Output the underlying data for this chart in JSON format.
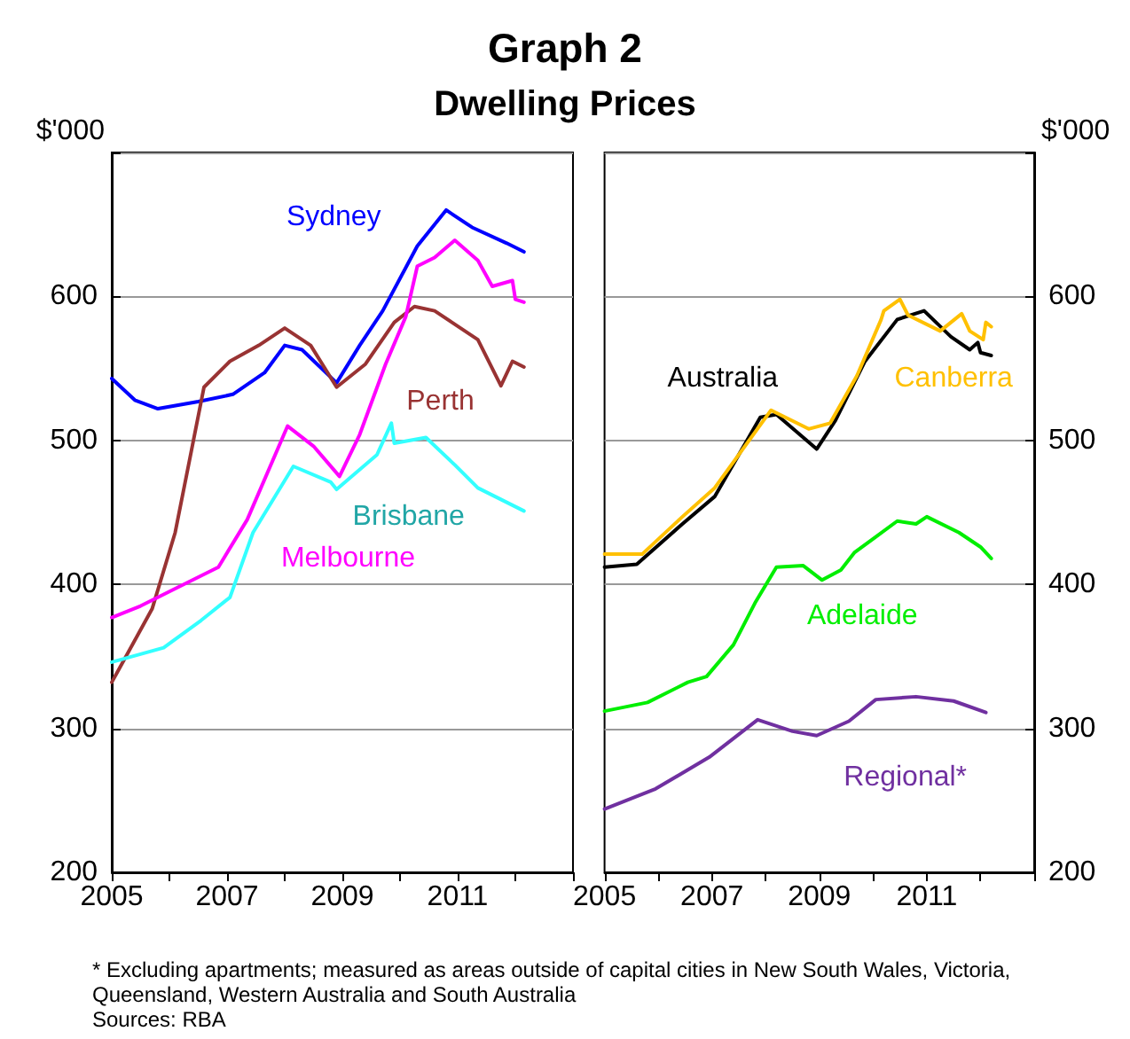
{
  "chart_data": [
    {
      "type": "line",
      "title": "Graph 2",
      "subtitle": "Dwelling Prices",
      "ylabel": "$'000",
      "marker": "none",
      "line_style": "solid",
      "grid": "y",
      "annotations": [
        "* Excluding apartments; measured as areas outside of capital cities in New South Wales, Victoria, Queensland, Western Australia and South Australia",
        "Sources: RBA"
      ],
      "xlim": [
        2005,
        2013
      ],
      "xticks": [
        2005,
        {
          "value": 2006,
          "label": null
        },
        2007,
        {
          "value": 2008,
          "label": null
        },
        2009,
        {
          "value": 2010,
          "label": null
        },
        2011,
        {
          "value": 2012,
          "label": null
        },
        {
          "value": 2013,
          "label": null
        }
      ],
      "ylim": [
        200,
        700
      ],
      "yticks": [
        200,
        300,
        400,
        500,
        600,
        {
          "value": 700,
          "label": null
        }
      ],
      "series": [
        {
          "name": "Sydney",
          "color": "#0000ff",
          "x": [
            2005.0,
            2005.4,
            2005.8,
            2006.5,
            2007.1,
            2007.65,
            2008.0,
            2008.3,
            2008.9,
            2009.3,
            2009.7,
            2010.3,
            2010.8,
            2011.25,
            2011.85,
            2012.15
          ],
          "values": [
            543,
            528,
            522,
            527,
            532,
            547,
            566,
            563,
            540,
            566,
            590,
            635,
            660,
            648,
            637,
            631
          ]
        },
        {
          "name": "Perth",
          "color": "#993333",
          "x": [
            2005.0,
            2005.7,
            2006.1,
            2006.6,
            2007.05,
            2007.55,
            2008.0,
            2008.45,
            2008.9,
            2009.4,
            2009.9,
            2010.25,
            2010.6,
            2010.9,
            2011.35,
            2011.75,
            2011.95,
            2012.15
          ],
          "values": [
            332,
            383,
            436,
            537,
            555,
            566,
            578,
            566,
            537,
            553,
            582,
            593,
            590,
            582,
            570,
            538,
            555,
            551
          ]
        },
        {
          "name": "Melbourne",
          "color": "#ff00ff",
          "x": [
            2005.0,
            2005.5,
            2006.1,
            2006.85,
            2007.35,
            2008.05,
            2008.5,
            2008.95,
            2009.3,
            2009.75,
            2010.1,
            2010.3,
            2010.6,
            2010.95,
            2011.35,
            2011.6,
            2011.95,
            2012.0,
            2012.15
          ],
          "values": [
            377,
            385,
            397,
            412,
            445,
            510,
            496,
            475,
            504,
            553,
            586,
            621,
            627,
            639,
            625,
            607,
            611,
            598,
            596
          ]
        },
        {
          "name": "Brisbane",
          "color": "#33ffff",
          "x": [
            2005.0,
            2005.9,
            2006.55,
            2007.05,
            2007.45,
            2008.15,
            2008.8,
            2008.9,
            2009.6,
            2009.85,
            2009.9,
            2010.45,
            2010.95,
            2011.35,
            2011.75,
            2012.15
          ],
          "values": [
            346,
            356,
            375,
            391,
            436,
            482,
            471,
            466,
            490,
            512,
            498,
            502,
            483,
            467,
            459,
            451
          ]
        }
      ]
    },
    {
      "type": "line",
      "y2label": "$'000",
      "marker": "none",
      "line_style": "solid",
      "grid": "y",
      "xlim": [
        2005,
        2013
      ],
      "xticks": [
        2005,
        {
          "value": 2006,
          "label": null
        },
        2007,
        {
          "value": 2008,
          "label": null
        },
        2009,
        {
          "value": 2010,
          "label": null
        },
        2011,
        {
          "value": 2012,
          "label": null
        },
        {
          "value": 2013,
          "label": null
        }
      ],
      "y2lim": [
        200,
        700
      ],
      "y2ticks": [
        200,
        300,
        400,
        500,
        600,
        {
          "value": 700,
          "label": null
        }
      ],
      "series": [
        {
          "name": "Australia",
          "color": "#000000",
          "axis": "y2",
          "x": [
            2005.0,
            2005.6,
            2006.45,
            2007.05,
            2007.9,
            2008.2,
            2008.95,
            2009.3,
            2009.85,
            2010.45,
            2010.95,
            2011.45,
            2011.8,
            2011.95,
            2012.0,
            2012.2
          ],
          "values": [
            412,
            414,
            442,
            461,
            516,
            518,
            494,
            514,
            555,
            584,
            590,
            572,
            563,
            568,
            561,
            559
          ]
        },
        {
          "name": "Canberra",
          "color": "#ffc000",
          "axis": "y2",
          "x": [
            2005.0,
            2005.7,
            2006.45,
            2007.05,
            2008.1,
            2008.8,
            2009.2,
            2009.7,
            2010.15,
            2010.2,
            2010.5,
            2010.65,
            2011.25,
            2011.65,
            2011.8,
            2012.05,
            2012.1,
            2012.2
          ],
          "values": [
            421,
            421,
            447,
            467,
            521,
            508,
            512,
            545,
            584,
            590,
            598,
            587,
            576,
            588,
            576,
            570,
            582,
            579
          ]
        },
        {
          "name": "Adelaide",
          "color": "#00ee00",
          "axis": "y2",
          "x": [
            2005.0,
            2005.8,
            2006.55,
            2006.9,
            2007.4,
            2007.8,
            2008.2,
            2008.7,
            2009.05,
            2009.4,
            2009.65,
            2010.05,
            2010.45,
            2010.8,
            2011.0,
            2011.6,
            2012.0,
            2012.2
          ],
          "values": [
            312,
            318,
            332,
            336,
            358,
            387,
            412,
            413,
            403,
            410,
            422,
            433,
            444,
            442,
            447,
            436,
            426,
            418
          ]
        },
        {
          "name": "Regional*",
          "color": "#7030a0",
          "axis": "y2",
          "x": [
            2005.0,
            2005.95,
            2006.95,
            2007.85,
            2008.5,
            2008.95,
            2009.55,
            2010.05,
            2010.8,
            2011.5,
            2012.1
          ],
          "values": [
            244,
            258,
            280,
            306,
            298,
            295,
            305,
            320,
            322,
            319,
            311
          ]
        }
      ]
    }
  ]
}
